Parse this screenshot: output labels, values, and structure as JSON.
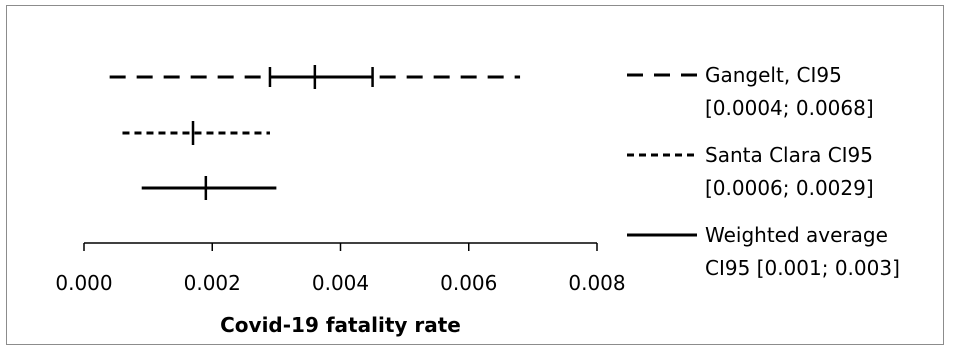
{
  "chart_data": {
    "type": "errorbar",
    "title": "",
    "xlabel": "Covid-19 fatality rate",
    "xlim": [
      0,
      0.008
    ],
    "x_ticks": [
      "0.000",
      "0.002",
      "0.004",
      "0.006",
      "0.008"
    ],
    "x_tick_values": [
      0,
      0.002,
      0.004,
      0.006,
      0.008
    ],
    "grid": false,
    "legend_position": "right",
    "series": [
      {
        "name_line1": "Gangelt, CI95",
        "name_line2": "[0.0004; 0.0068]",
        "style": "long-dash",
        "ci_low": 0.0004,
        "ci_high": 0.0068,
        "point": 0.0036,
        "inner_low": 0.0029,
        "inner_high": 0.0045
      },
      {
        "name_line1": "Santa Clara CI95",
        "name_line2": "[0.0006; 0.0029]",
        "style": "short-dash",
        "ci_low": 0.0006,
        "ci_high": 0.0029,
        "point": 0.0017
      },
      {
        "name_line1": "Weighted average",
        "name_line2": "CI95 [0.001; 0.003]",
        "style": "solid",
        "ci_low": 0.0009,
        "ci_high": 0.003,
        "point": 0.0019
      }
    ]
  }
}
